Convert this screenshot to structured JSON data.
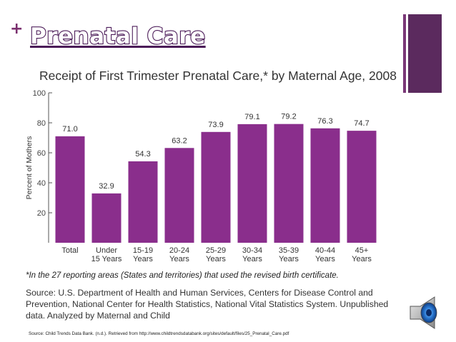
{
  "slide": {
    "plus": "+",
    "title": "Prenatal Care",
    "source_text": "Source: U.S. Department of Health and Human Services, Centers for Disease Control and Prevention, National Center for Health Statistics, National Vital Statistics System. Unpublished data. Analyzed by Maternal and Child",
    "citation": "Source: Child Trends Data Bank. (n.d.). Retrieved from http://www.childtrendsdatabank.org/sites/default/files/25_Prenatal_Care.pdf"
  },
  "icons": {
    "speaker": "speaker-icon"
  },
  "colors": {
    "bar": "#8a2e8c",
    "accent": "#5b2a5e",
    "title_stroke": "#4b1b58"
  },
  "chart_data": {
    "type": "bar",
    "title": "Receipt of First Trimester Prenatal Care,* by Maternal Age, 2008",
    "ylabel": "Percent of Mothers",
    "xlabel": "",
    "categories": [
      [
        "Total"
      ],
      [
        "Under",
        "15 Years"
      ],
      [
        "15-19",
        "Years"
      ],
      [
        "20-24",
        "Years"
      ],
      [
        "25-29",
        "Years"
      ],
      [
        "30-34",
        "Years"
      ],
      [
        "35-39",
        "Years"
      ],
      [
        "40-44",
        "Years"
      ],
      [
        "45+",
        "Years"
      ]
    ],
    "values": [
      71.0,
      32.9,
      54.3,
      63.2,
      73.9,
      79.1,
      79.2,
      76.3,
      74.7
    ],
    "value_labels": [
      "71.0",
      "32.9",
      "54.3",
      "63.2",
      "73.9",
      "79.1",
      "79.2",
      "76.3",
      "74.7"
    ],
    "yticks": [
      20,
      40,
      60,
      80,
      100
    ],
    "ytick_labels": [
      "20",
      "40",
      "60",
      "80",
      "100"
    ],
    "ylim": [
      0,
      100
    ],
    "grid": false,
    "footnote": "*In the 27 reporting areas (States and territories) that used the revised birth certificate."
  }
}
